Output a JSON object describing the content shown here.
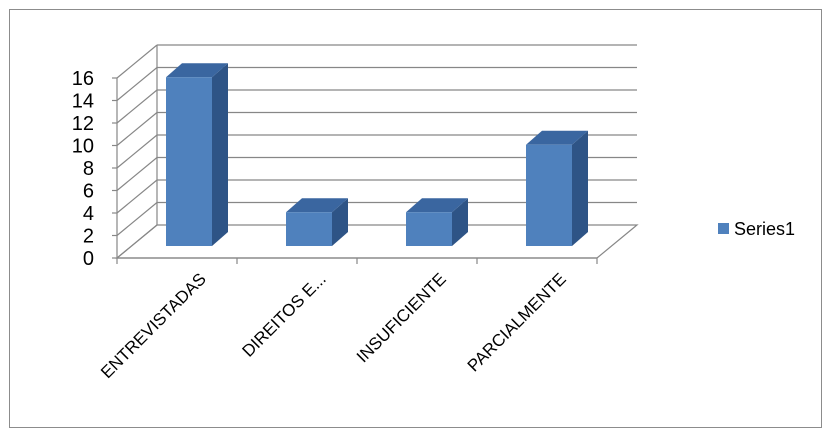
{
  "chart_data": {
    "type": "bar",
    "style": "3d-column",
    "categories": [
      "ENTREVISTADAS",
      "DIREITOS E...",
      "INSUFICIENTE",
      "PARCIALMENTE"
    ],
    "series": [
      {
        "name": "Series1",
        "values": [
          15,
          3,
          3,
          9
        ],
        "color": "#4F81BD"
      }
    ],
    "ylim": [
      0,
      16
    ],
    "yticks": [
      "0",
      "2",
      "4",
      "6",
      "8",
      "10",
      "12",
      "14",
      "16"
    ],
    "grid": true,
    "legend_position": "right",
    "title": "",
    "xlabel": "",
    "ylabel": ""
  }
}
